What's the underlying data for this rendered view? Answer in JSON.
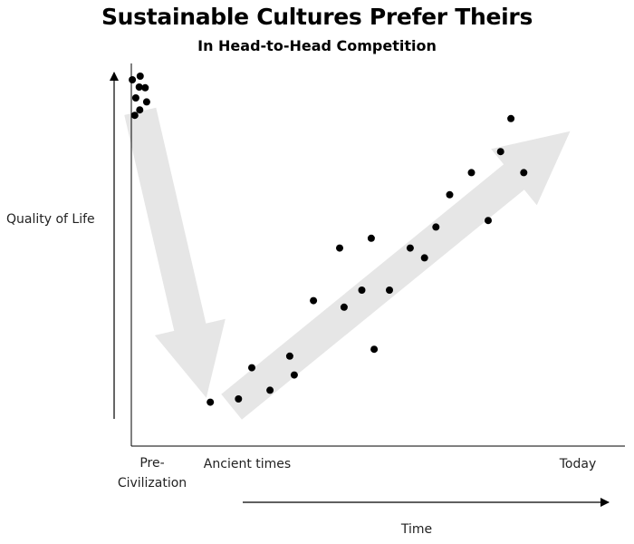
{
  "chart_data": {
    "type": "scatter",
    "title": "Sustainable Cultures Prefer Theirs",
    "subtitle": "In Head-to-Head Competition",
    "xlabel": "Time",
    "ylabel": "Quality of Life",
    "x_tick_labels": {
      "pre": [
        "Pre-",
        "Civilization"
      ],
      "ancient": "Ancient times",
      "today": "Today"
    },
    "axis_ticks": false,
    "grid": false,
    "legend": "none",
    "colors": {
      "points": "#000000",
      "arrows": "#e6e6e6",
      "axes": "#000000"
    },
    "points": [
      {
        "x": 0.2,
        "y": 95.5
      },
      {
        "x": 1.8,
        "y": 96.5
      },
      {
        "x": 1.6,
        "y": 93.5
      },
      {
        "x": 2.8,
        "y": 93.3
      },
      {
        "x": 0.9,
        "y": 90.5
      },
      {
        "x": 3.1,
        "y": 89.4
      },
      {
        "x": 1.7,
        "y": 87.2
      },
      {
        "x": 0.7,
        "y": 85.7
      },
      {
        "x": 16.0,
        "y": 6.6
      },
      {
        "x": 21.7,
        "y": 7.5
      },
      {
        "x": 24.4,
        "y": 16.1
      },
      {
        "x": 28.1,
        "y": 9.9
      },
      {
        "x": 32.1,
        "y": 19.3
      },
      {
        "x": 33.0,
        "y": 14.1
      },
      {
        "x": 36.9,
        "y": 34.6
      },
      {
        "x": 42.2,
        "y": 49.1
      },
      {
        "x": 43.1,
        "y": 32.8
      },
      {
        "x": 46.7,
        "y": 37.5
      },
      {
        "x": 48.6,
        "y": 51.8
      },
      {
        "x": 49.2,
        "y": 21.2
      },
      {
        "x": 52.3,
        "y": 37.5
      },
      {
        "x": 56.5,
        "y": 49.1
      },
      {
        "x": 59.4,
        "y": 46.4
      },
      {
        "x": 61.7,
        "y": 54.9
      },
      {
        "x": 64.5,
        "y": 63.8
      },
      {
        "x": 68.9,
        "y": 69.9
      },
      {
        "x": 72.3,
        "y": 56.7
      },
      {
        "x": 74.8,
        "y": 75.7
      },
      {
        "x": 76.9,
        "y": 84.8
      },
      {
        "x": 79.5,
        "y": 69.9
      }
    ],
    "arrows": [
      {
        "from": {
          "x": 1.8,
          "y": 86.8
        },
        "to": {
          "x": 15.2,
          "y": 7.8
        }
      },
      {
        "from": {
          "x": 20.3,
          "y": 5.3
        },
        "to": {
          "x": 88.9,
          "y": 81.3
        }
      }
    ]
  }
}
